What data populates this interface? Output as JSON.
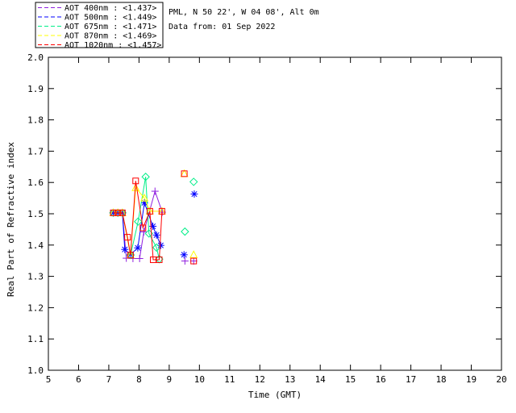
{
  "page": {
    "background": "#ffffff"
  },
  "header": {
    "site_line": "PML, N 50 22', W 04 08', Alt 0m",
    "date_line": "Data from: 01 Sep 2022",
    "color": "#000066"
  },
  "legend": {
    "border_color": "#000000",
    "items": [
      {
        "label": "AOT  400nm : <1.437>",
        "wavelength": "400nm",
        "mean": "1.437",
        "color": "#9020E0"
      },
      {
        "label": "AOT  500nm : <1.449>",
        "wavelength": "500nm",
        "mean": "1.449",
        "color": "#0000FF"
      },
      {
        "label": "AOT  675nm : <1.471>",
        "wavelength": "675nm",
        "mean": "1.471",
        "color": "#00EE88"
      },
      {
        "label": "AOT  870nm : <1.469>",
        "wavelength": "870nm",
        "mean": "1.469",
        "color": "#FFFF00"
      },
      {
        "label": "AOT 1020nm : <1.457>",
        "wavelength": "1020nm",
        "mean": "1.457",
        "color": "#FF0000"
      }
    ]
  },
  "chart_data": {
    "type": "line",
    "title": "",
    "xlabel": "Time (GMT)",
    "ylabel": "Real Part of Refractive index",
    "xlim": [
      5,
      20
    ],
    "ylim": [
      1.0,
      2.0
    ],
    "xticks": [
      5,
      6,
      7,
      8,
      9,
      10,
      11,
      12,
      13,
      14,
      15,
      16,
      17,
      18,
      19,
      20
    ],
    "yticks": [
      1.0,
      1.1,
      1.2,
      1.3,
      1.4,
      1.5,
      1.6,
      1.7,
      1.8,
      1.9,
      2.0
    ],
    "grid": false,
    "axis_color": "#000000",
    "legend_position": "top-left-outside",
    "series": [
      {
        "name": "AOT 400nm",
        "marker": "plus",
        "color": "#9020E0",
        "line": [
          [
            7.15,
            1.503
          ],
          [
            7.3,
            1.503
          ],
          [
            7.45,
            1.503
          ],
          [
            7.58,
            1.358
          ],
          [
            7.8,
            1.357
          ],
          [
            8.02,
            1.357
          ],
          [
            8.16,
            1.442
          ],
          [
            8.53,
            1.572
          ],
          [
            8.77,
            1.505
          ]
        ],
        "scatter": [
          [
            9.52,
            1.349
          ],
          [
            9.81,
            1.349
          ]
        ]
      },
      {
        "name": "AOT 500nm",
        "marker": "asterisk",
        "color": "#0000FF",
        "line": [
          [
            7.15,
            1.503
          ],
          [
            7.3,
            1.503
          ],
          [
            7.45,
            1.503
          ],
          [
            7.53,
            1.386
          ],
          [
            7.72,
            1.37
          ],
          [
            7.96,
            1.391
          ],
          [
            8.18,
            1.535
          ],
          [
            8.46,
            1.46
          ],
          [
            8.58,
            1.432
          ],
          [
            8.72,
            1.399
          ]
        ],
        "scatter": [
          [
            9.49,
            1.369
          ],
          [
            9.83,
            1.563
          ]
        ]
      },
      {
        "name": "AOT 675nm",
        "marker": "diamond",
        "color": "#00EE88",
        "line": [
          [
            7.15,
            1.503
          ],
          [
            7.3,
            1.503
          ],
          [
            7.45,
            1.503
          ],
          [
            7.72,
            1.368
          ],
          [
            7.97,
            1.475
          ],
          [
            8.22,
            1.618
          ],
          [
            8.33,
            1.437
          ],
          [
            8.58,
            1.392
          ],
          [
            8.67,
            1.355
          ]
        ],
        "scatter": [
          [
            9.52,
            1.443
          ],
          [
            9.81,
            1.602
          ]
        ]
      },
      {
        "name": "AOT 870nm",
        "marker": "triangle",
        "color": "#FFFF00",
        "line": [
          [
            7.15,
            1.503
          ],
          [
            7.3,
            1.503
          ],
          [
            7.45,
            1.503
          ],
          [
            7.72,
            1.368
          ],
          [
            7.89,
            1.583
          ],
          [
            8.18,
            1.55
          ],
          [
            8.36,
            1.508
          ],
          [
            8.76,
            1.508
          ]
        ],
        "scatter": [
          [
            9.5,
            1.628
          ],
          [
            9.81,
            1.369
          ]
        ]
      },
      {
        "name": "AOT 1020nm",
        "marker": "square",
        "color": "#FF0000",
        "line": [
          [
            7.15,
            1.503
          ],
          [
            7.3,
            1.503
          ],
          [
            7.45,
            1.503
          ],
          [
            7.62,
            1.425
          ],
          [
            7.72,
            1.368
          ],
          [
            7.89,
            1.605
          ],
          [
            8.13,
            1.455
          ],
          [
            8.36,
            1.508
          ],
          [
            8.47,
            1.353
          ],
          [
            8.67,
            1.353
          ],
          [
            8.76,
            1.508
          ]
        ],
        "scatter": [
          [
            9.5,
            1.628
          ],
          [
            9.81,
            1.349
          ]
        ]
      }
    ]
  }
}
